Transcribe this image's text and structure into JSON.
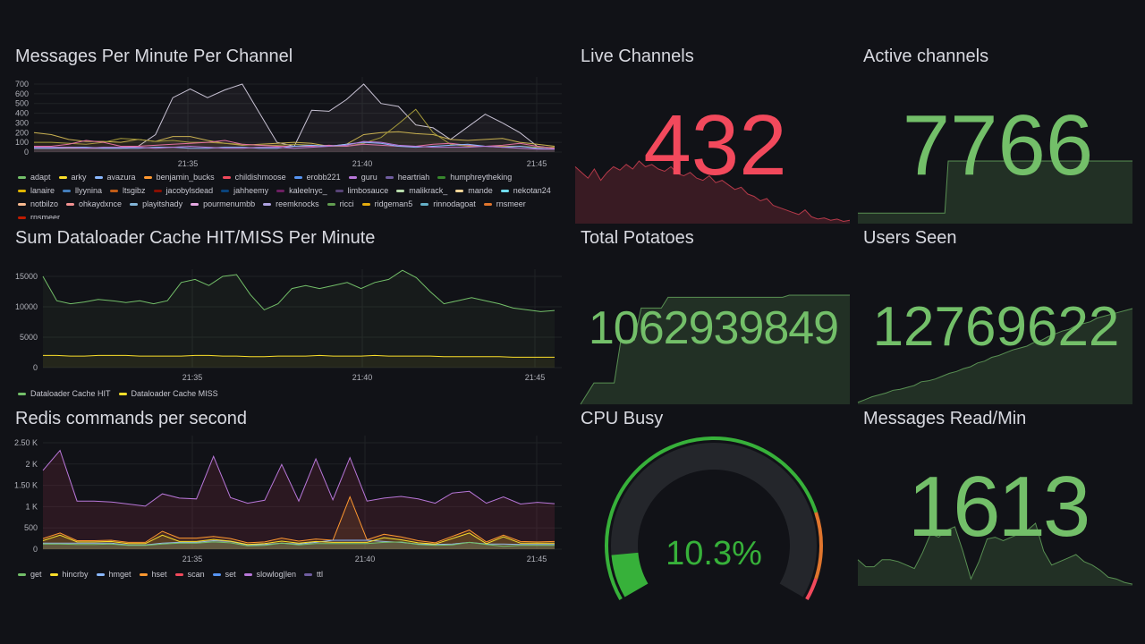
{
  "colors": {
    "green": "#73bf69",
    "red": "#f2495c",
    "orange": "#ff9830",
    "grid": "#24262c"
  },
  "panels": {
    "messages": {
      "title": "Messages Per Minute Per Channel"
    },
    "dataloader": {
      "title": "Sum Dataloader Cache HIT/MISS Per Minute"
    },
    "redis": {
      "title": "Redis commands per second"
    },
    "live": {
      "title": "Live Channels",
      "value": "432"
    },
    "active": {
      "title": "Active channels",
      "value": "7766"
    },
    "potatoes": {
      "title": "Total Potatoes",
      "value": "1062939849"
    },
    "users": {
      "title": "Users Seen",
      "value": "12769622"
    },
    "cpu": {
      "title": "CPU Busy",
      "value": "10.3%",
      "percent": 10.3
    },
    "read": {
      "title": "Messages Read/Min",
      "value": "1613"
    }
  },
  "chart_data": [
    {
      "type": "line",
      "id": "messages",
      "yticks": [
        "0",
        "100",
        "200",
        "300",
        "400",
        "500",
        "600",
        "700"
      ],
      "ylim": [
        0,
        700
      ],
      "xticks": [
        "21:35",
        "21:40",
        "21:45"
      ],
      "xlim_minutes_after_2130": [
        1,
        16
      ],
      "legend": [
        [
          "adapt",
          "#73bf69"
        ],
        [
          "arky",
          "#fade2a"
        ],
        [
          "avazura",
          "#8ab8ff"
        ],
        [
          "benjamin_bucks",
          "#ff9830"
        ],
        [
          "childishmoose",
          "#f2495c"
        ],
        [
          "erobb221",
          "#5794f2"
        ],
        [
          "guru",
          "#b877d9"
        ],
        [
          "heartriah",
          "#705da0"
        ],
        [
          "humphreytheking",
          "#37872d"
        ],
        [
          "lanaire",
          "#e0b400"
        ],
        [
          "llyynina",
          "#447ebc"
        ],
        [
          "ltsgibz",
          "#c15c17"
        ],
        [
          "jacobylsdead",
          "#890f02"
        ],
        [
          "jahheemy",
          "#0a437c"
        ],
        [
          "kaleelnyc_",
          "#6d1f62"
        ],
        [
          "limbosauce",
          "#584477"
        ],
        [
          "malikrack_",
          "#b7dbab"
        ],
        [
          "mande",
          "#f4d598"
        ],
        [
          "nekotan24",
          "#70dbed"
        ],
        [
          "notbilzo",
          "#f9ba8f"
        ],
        [
          "ohkaydxnce",
          "#f29191"
        ],
        [
          "playitshady",
          "#82b5d8"
        ],
        [
          "pourmenumbb",
          "#e5a8e2"
        ],
        [
          "reemknocks",
          "#aea2e0"
        ],
        [
          "ricci",
          "#629e51"
        ],
        [
          "ridgeman5",
          "#e5ac0e"
        ],
        [
          "rinnodagoat",
          "#64b0c8"
        ],
        [
          "rnsmeer",
          "#e0752d"
        ],
        [
          "rnsmeer",
          "#bf1b00"
        ]
      ],
      "series": [
        {
          "color": "#c8c2d4",
          "values": [
            40,
            40,
            40,
            40,
            40,
            40,
            60,
            180,
            560,
            650,
            560,
            640,
            700,
            400,
            100,
            60,
            430,
            420,
            540,
            700,
            500,
            470,
            280,
            250,
            130,
            260,
            390,
            300,
            200,
            60,
            40
          ]
        },
        {
          "color": "#c8b050",
          "values": [
            200,
            180,
            130,
            110,
            110,
            100,
            130,
            110,
            160,
            160,
            120,
            90,
            70,
            80,
            90,
            100,
            90,
            60,
            80,
            180,
            200,
            210,
            190,
            180,
            130,
            120,
            130,
            140,
            100,
            80,
            60
          ]
        },
        {
          "color": "#a59a3a",
          "values": [
            100,
            100,
            90,
            80,
            100,
            140,
            130,
            110,
            120,
            100,
            100,
            90,
            80,
            70,
            70,
            80,
            70,
            60,
            60,
            90,
            150,
            290,
            440,
            200,
            80,
            60,
            60,
            60,
            60,
            50,
            50
          ]
        },
        {
          "color": "#e06fa0",
          "values": [
            60,
            60,
            80,
            120,
            100,
            60,
            60,
            70,
            80,
            90,
            100,
            120,
            80,
            70,
            60,
            60,
            60,
            70,
            60,
            80,
            70,
            60,
            60,
            80,
            90,
            70,
            60,
            70,
            90,
            60,
            40
          ]
        },
        {
          "color": "#8ab8ff",
          "values": [
            40,
            40,
            50,
            50,
            40,
            40,
            40,
            50,
            50,
            40,
            40,
            50,
            50,
            40,
            40,
            60,
            70,
            60,
            80,
            100,
            90,
            60,
            50,
            60,
            70,
            80,
            60,
            50,
            60,
            40,
            30
          ]
        },
        {
          "color": "#b877d9",
          "values": [
            50,
            50,
            50,
            40,
            50,
            50,
            50,
            40,
            50,
            60,
            50,
            40,
            40,
            50,
            50,
            40,
            50,
            60,
            70,
            110,
            100,
            70,
            60,
            50,
            50,
            50,
            60,
            50,
            40,
            30,
            30
          ]
        }
      ]
    },
    {
      "type": "line",
      "id": "dataloader",
      "yticks": [
        "0",
        "5000",
        "10000",
        "15000"
      ],
      "ylim": [
        0,
        15000
      ],
      "xticks": [
        "21:35",
        "21:40",
        "21:45"
      ],
      "legend": [
        [
          "Dataloader Cache HIT",
          "#73bf69"
        ],
        [
          "Dataloader Cache MISS",
          "#fade2a"
        ]
      ],
      "series": [
        {
          "color": "#73bf69",
          "values": [
            15000,
            11000,
            10500,
            10800,
            11200,
            11000,
            10700,
            11000,
            10500,
            11000,
            14000,
            14500,
            13500,
            15000,
            15300,
            12000,
            9500,
            10500,
            13000,
            13500,
            13000,
            13500,
            14000,
            13000,
            14000,
            14500,
            16000,
            14800,
            12500,
            10500,
            11000,
            11500,
            11000,
            10500,
            9800,
            9500,
            9200,
            9400
          ]
        },
        {
          "color": "#fade2a",
          "values": [
            2000,
            2000,
            1900,
            1900,
            2000,
            2000,
            2000,
            1900,
            1900,
            1900,
            1900,
            2000,
            2000,
            1900,
            1900,
            1800,
            1800,
            1900,
            1900,
            1900,
            2000,
            1900,
            1900,
            1900,
            2000,
            1900,
            1900,
            1900,
            1900,
            1800,
            1800,
            1800,
            1800,
            1800,
            1700,
            1700,
            1700,
            1700
          ]
        }
      ]
    },
    {
      "type": "area",
      "id": "redis",
      "yticks": [
        "0",
        "500",
        "1 K",
        "1.50 K",
        "2 K",
        "2.50 K"
      ],
      "ylim": [
        0,
        2500
      ],
      "xticks": [
        "21:35",
        "21:40",
        "21:45"
      ],
      "legend": [
        [
          "get",
          "#73bf69"
        ],
        [
          "hincrby",
          "#fade2a"
        ],
        [
          "hmget",
          "#8ab8ff"
        ],
        [
          "hset",
          "#ff9830"
        ],
        [
          "scan",
          "#f2495c"
        ],
        [
          "set",
          "#5794f2"
        ],
        [
          "slowlog|len",
          "#b877d9"
        ],
        [
          "ttl",
          "#705da0"
        ]
      ],
      "series": [
        {
          "color": "#b877d9",
          "values": [
            1850,
            2320,
            1130,
            1130,
            1110,
            1060,
            1010,
            1300,
            1200,
            1180,
            2180,
            1210,
            1080,
            1150,
            1990,
            1130,
            2120,
            1160,
            2150,
            1130,
            1200,
            1240,
            1180,
            1080,
            1320,
            1360,
            1080,
            1230,
            1060,
            1100,
            1070
          ]
        },
        {
          "color": "#ff9830",
          "values": [
            250,
            380,
            200,
            200,
            210,
            160,
            160,
            420,
            260,
            260,
            300,
            250,
            150,
            170,
            260,
            190,
            240,
            210,
            1230,
            220,
            350,
            290,
            200,
            150,
            300,
            450,
            170,
            330,
            180,
            170,
            180
          ]
        },
        {
          "color": "#8ab8ff",
          "values": [
            140,
            140,
            140,
            140,
            140,
            100,
            100,
            140,
            160,
            160,
            200,
            180,
            100,
            110,
            140,
            120,
            160,
            210,
            210,
            210,
            180,
            160,
            120,
            110,
            120,
            160,
            120,
            120,
            110,
            110,
            110
          ]
        },
        {
          "color": "#fade2a",
          "values": [
            200,
            330,
            170,
            170,
            180,
            130,
            130,
            330,
            180,
            180,
            230,
            190,
            110,
            130,
            190,
            140,
            180,
            160,
            160,
            160,
            270,
            220,
            150,
            120,
            250,
            380,
            130,
            290,
            140,
            140,
            140
          ]
        },
        {
          "color": "#73bf69",
          "values": [
            120,
            120,
            110,
            110,
            120,
            90,
            90,
            120,
            140,
            140,
            170,
            150,
            80,
            90,
            140,
            100,
            130,
            130,
            130,
            130,
            160,
            170,
            110,
            90,
            100,
            160,
            110,
            70,
            90,
            90,
            90
          ]
        }
      ]
    },
    {
      "type": "area",
      "id": "live_spark",
      "color": "#f2495c",
      "values": [
        50,
        45,
        40,
        48,
        38,
        45,
        50,
        47,
        52,
        48,
        55,
        50,
        52,
        48,
        46,
        50,
        44,
        42,
        45,
        40,
        38,
        42,
        36,
        38,
        34,
        30,
        32,
        26,
        24,
        20,
        22,
        16,
        14,
        12,
        10,
        8,
        12,
        6,
        4,
        5,
        3,
        4,
        2,
        3
      ]
    },
    {
      "type": "area",
      "id": "active_spark",
      "color": "#73bf69",
      "values": [
        10,
        10,
        10,
        10,
        10,
        10,
        10,
        10,
        10,
        10,
        10,
        10,
        10,
        10,
        10,
        10,
        10,
        10,
        10,
        10,
        10,
        10,
        10,
        10,
        10,
        10,
        60,
        60,
        60,
        60,
        60,
        60,
        60,
        60,
        60,
        60,
        60,
        60,
        60,
        60,
        60,
        60,
        60,
        60,
        60,
        60,
        60,
        60,
        60,
        60,
        60,
        60,
        60,
        60,
        60,
        60,
        60,
        60,
        60,
        60,
        60,
        60,
        60,
        60,
        60,
        60,
        60,
        60,
        60,
        60,
        60,
        60,
        60,
        60,
        60,
        60,
        60,
        60,
        60,
        60
      ]
    },
    {
      "type": "area",
      "id": "potatoes_spark",
      "color": "#73bf69",
      "values": [
        0,
        10,
        20,
        20,
        20,
        20,
        60,
        60,
        60,
        90,
        90,
        90,
        90,
        100,
        100,
        100,
        100,
        100,
        100,
        100,
        100,
        100,
        100,
        100,
        100,
        100,
        100,
        100,
        100,
        100,
        100,
        102,
        102,
        102,
        102,
        102,
        102,
        102,
        102,
        102,
        102
      ]
    },
    {
      "type": "area",
      "id": "users_spark",
      "color": "#73bf69",
      "values": [
        2,
        5,
        8,
        10,
        12,
        15,
        16,
        18,
        20,
        24,
        25,
        27,
        30,
        33,
        35,
        38,
        40,
        44,
        46,
        50,
        52,
        55,
        58,
        60,
        62,
        66,
        68,
        72,
        75,
        78,
        80,
        84,
        86,
        88,
        92,
        94,
        96,
        98,
        100,
        102
      ]
    },
    {
      "type": "area",
      "id": "read_spark",
      "color": "#73bf69",
      "values": [
        30,
        22,
        22,
        30,
        30,
        28,
        24,
        20,
        38,
        60,
        56,
        64,
        68,
        40,
        8,
        28,
        54,
        56,
        52,
        56,
        60,
        64,
        72,
        40,
        24,
        28,
        32,
        36,
        28,
        24,
        18,
        10,
        8,
        4,
        2
      ]
    }
  ]
}
